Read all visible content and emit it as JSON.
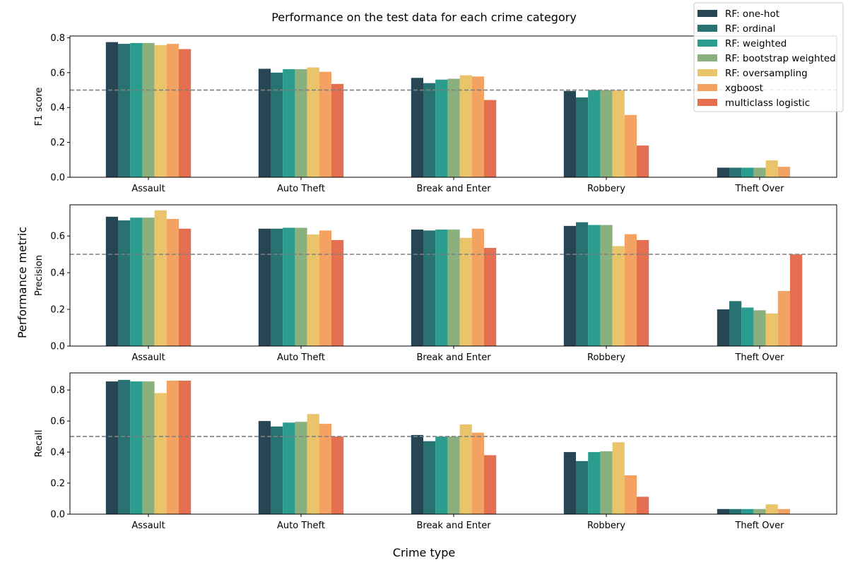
{
  "title": "Performance on the test data for each crime category",
  "supxlabel": "Crime type",
  "supylabel": "Performance metric",
  "colors": [
    "#264653",
    "#287271",
    "#2a9d8f",
    "#8ab17d",
    "#e9c46a",
    "#f4a261",
    "#e76f51"
  ],
  "reference_line": {
    "value": 0.5,
    "color": "#808080",
    "style": "dashed"
  },
  "chart_data": [
    {
      "type": "bar",
      "ylabel": "F1 score",
      "ylim": [
        0,
        0.81
      ],
      "yticks": [
        "0.0",
        "0.2",
        "0.4",
        "0.6",
        "0.8"
      ],
      "categories": [
        "Assault",
        "Auto Theft",
        "Break and Enter",
        "Robbery",
        "Theft Over"
      ],
      "legend": "top-right",
      "series": [
        {
          "name": "RF: one-hot",
          "values": [
            0.775,
            0.622,
            0.57,
            0.495,
            0.055
          ]
        },
        {
          "name": "RF: ordinal",
          "values": [
            0.765,
            0.6,
            0.54,
            0.458,
            0.055
          ]
        },
        {
          "name": "RF: weighted",
          "values": [
            0.77,
            0.62,
            0.56,
            0.5,
            0.055
          ]
        },
        {
          "name": "RF: bootstrap weighted",
          "values": [
            0.77,
            0.62,
            0.565,
            0.5,
            0.055
          ]
        },
        {
          "name": "RF: oversampling",
          "values": [
            0.758,
            0.63,
            0.585,
            0.5,
            0.097
          ]
        },
        {
          "name": "xgboost",
          "values": [
            0.765,
            0.605,
            0.578,
            0.357,
            0.06
          ]
        },
        {
          "name": "multiclass logistic",
          "values": [
            0.735,
            0.535,
            0.443,
            0.182,
            0.0
          ]
        }
      ]
    },
    {
      "type": "bar",
      "ylabel": "Precision",
      "ylim": [
        0,
        0.77
      ],
      "yticks": [
        "0.0",
        "0.2",
        "0.4",
        "0.6"
      ],
      "categories": [
        "Assault",
        "Auto Theft",
        "Break and Enter",
        "Robbery",
        "Theft Over"
      ],
      "series": [
        {
          "name": "RF: one-hot",
          "values": [
            0.705,
            0.64,
            0.635,
            0.655,
            0.2
          ]
        },
        {
          "name": "RF: ordinal",
          "values": [
            0.685,
            0.64,
            0.63,
            0.675,
            0.245
          ]
        },
        {
          "name": "RF: weighted",
          "values": [
            0.7,
            0.645,
            0.635,
            0.66,
            0.21
          ]
        },
        {
          "name": "RF: bootstrap weighted",
          "values": [
            0.7,
            0.645,
            0.635,
            0.66,
            0.195
          ]
        },
        {
          "name": "RF: oversampling",
          "values": [
            0.74,
            0.608,
            0.59,
            0.545,
            0.178
          ]
        },
        {
          "name": "xgboost",
          "values": [
            0.693,
            0.63,
            0.64,
            0.61,
            0.3
          ]
        },
        {
          "name": "multiclass logistic",
          "values": [
            0.64,
            0.578,
            0.535,
            0.578,
            0.5
          ]
        }
      ]
    },
    {
      "type": "bar",
      "ylabel": "Recall",
      "ylim": [
        0,
        0.91
      ],
      "yticks": [
        "0.0",
        "0.2",
        "0.4",
        "0.6",
        "0.8"
      ],
      "categories": [
        "Assault",
        "Auto Theft",
        "Break and Enter",
        "Robbery",
        "Theft Over"
      ],
      "series": [
        {
          "name": "RF: one-hot",
          "values": [
            0.855,
            0.6,
            0.51,
            0.4,
            0.033
          ]
        },
        {
          "name": "RF: ordinal",
          "values": [
            0.865,
            0.565,
            0.47,
            0.342,
            0.033
          ]
        },
        {
          "name": "RF: weighted",
          "values": [
            0.855,
            0.59,
            0.5,
            0.4,
            0.033
          ]
        },
        {
          "name": "RF: bootstrap weighted",
          "values": [
            0.855,
            0.595,
            0.5,
            0.405,
            0.033
          ]
        },
        {
          "name": "RF: oversampling",
          "values": [
            0.78,
            0.645,
            0.578,
            0.463,
            0.063
          ]
        },
        {
          "name": "xgboost",
          "values": [
            0.86,
            0.582,
            0.525,
            0.25,
            0.033
          ]
        },
        {
          "name": "multiclass logistic",
          "values": [
            0.86,
            0.5,
            0.38,
            0.112,
            0.0
          ]
        }
      ]
    }
  ]
}
